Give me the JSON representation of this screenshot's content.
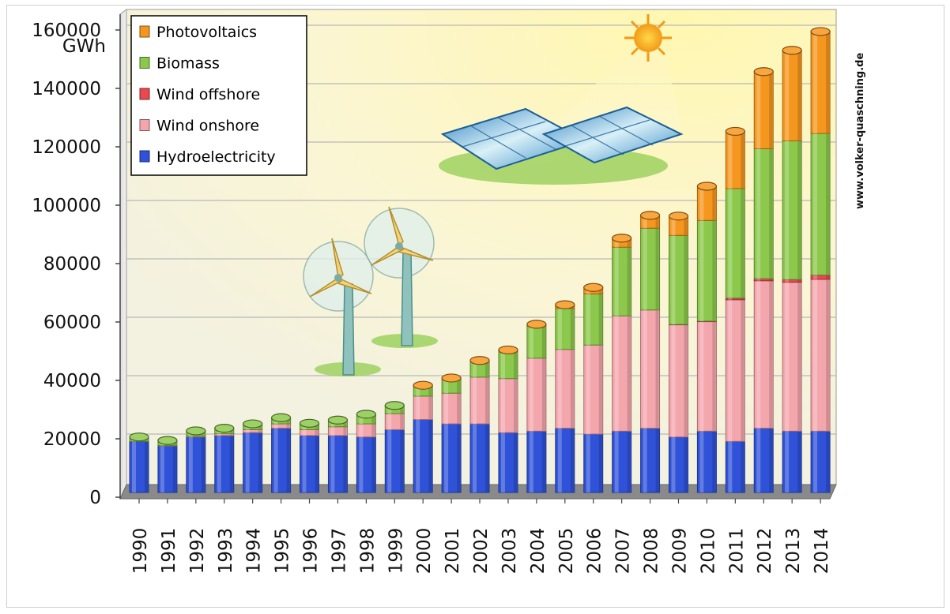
{
  "chart_data": {
    "type": "bar",
    "stacked": true,
    "ylabel": "GWh",
    "ylim": [
      0,
      160000
    ],
    "yticks": [
      0,
      20000,
      40000,
      60000,
      80000,
      100000,
      120000,
      140000,
      160000
    ],
    "grid": true,
    "legend_position": "top-left",
    "credit": "www.volker-quaschning.de",
    "categories": [
      "1990",
      "1991",
      "1992",
      "1993",
      "1994",
      "1995",
      "1996",
      "1997",
      "1998",
      "1999",
      "2000",
      "2001",
      "2002",
      "2003",
      "2004",
      "2005",
      "2006",
      "2007",
      "2008",
      "2009",
      "2010",
      "2011",
      "2012",
      "2013",
      "2014"
    ],
    "series": [
      {
        "name": "Hydroelectricity",
        "color": "#2f52d8",
        "values": [
          17500,
          16000,
          19000,
          19500,
          20500,
          22000,
          19500,
          19500,
          19000,
          21500,
          25000,
          23500,
          23500,
          20500,
          21000,
          22000,
          20000,
          21000,
          22000,
          19000,
          21000,
          17500,
          22000,
          21000,
          21000
        ]
      },
      {
        "name": "Wind onshore",
        "color": "#f4a6ad",
        "values": [
          0,
          100,
          300,
          600,
          1000,
          1500,
          2000,
          3000,
          4500,
          5500,
          8000,
          10500,
          16000,
          18500,
          25000,
          27000,
          30500,
          39500,
          40500,
          38500,
          37500,
          48500,
          50500,
          51000,
          52000
        ]
      },
      {
        "name": "Wind offshore",
        "color": "#e8484e",
        "values": [
          0,
          0,
          0,
          0,
          0,
          0,
          0,
          0,
          0,
          0,
          0,
          0,
          0,
          0,
          0,
          0,
          0,
          0,
          0,
          40,
          170,
          570,
          720,
          920,
          1450
        ]
      },
      {
        "name": "Biomass",
        "color": "#8cc84b",
        "values": [
          1500,
          1700,
          1800,
          1900,
          2000,
          2100,
          2200,
          2300,
          3300,
          2800,
          3600,
          5000,
          5500,
          9500,
          11000,
          14000,
          17500,
          23500,
          28000,
          30500,
          34500,
          37500,
          44500,
          47500,
          48500
        ]
      },
      {
        "name": "Photovoltaics",
        "color": "#f5961e",
        "values": [
          0,
          0,
          0,
          0,
          0,
          0,
          0,
          0,
          0,
          0,
          100,
          200,
          200,
          300,
          600,
          1300,
          2200,
          3100,
          4400,
          6600,
          11700,
          19600,
          26400,
          31000,
          34900
        ]
      }
    ]
  }
}
